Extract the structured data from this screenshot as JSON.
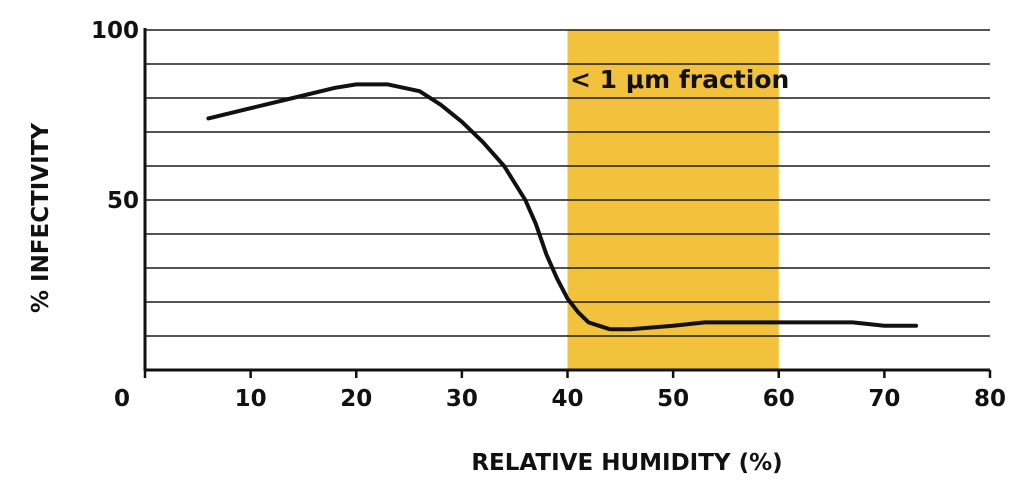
{
  "chart_data": {
    "type": "line",
    "title": "",
    "xlabel": "RELATIVE HUMIDITY (%)",
    "ylabel": "% INFECTIVITY",
    "xlim": [
      0,
      80
    ],
    "ylim": [
      0,
      100
    ],
    "x_ticks": [
      "0",
      "10",
      "20",
      "30",
      "40",
      "50",
      "60",
      "70",
      "80"
    ],
    "y_ticks": [
      "50",
      "100"
    ],
    "grid": true,
    "grid_step": 10,
    "highlight_band": {
      "x_start": 40,
      "x_end": 60,
      "color": "#f2c23c",
      "label": "< 1 μm fraction"
    },
    "line_color": "#111111",
    "series": [
      {
        "values": [
          [
            6,
            74
          ],
          [
            10,
            77
          ],
          [
            14,
            80
          ],
          [
            18,
            83
          ],
          [
            20,
            84
          ],
          [
            23,
            84
          ],
          [
            26,
            82
          ],
          [
            28,
            78
          ],
          [
            30,
            73
          ],
          [
            32,
            67
          ],
          [
            34,
            60
          ],
          [
            36,
            50
          ],
          [
            37,
            43
          ],
          [
            38,
            34
          ],
          [
            39,
            27
          ],
          [
            40,
            21
          ],
          [
            41,
            17
          ],
          [
            42,
            14
          ],
          [
            43,
            13
          ],
          [
            44,
            12
          ],
          [
            46,
            12
          ],
          [
            50,
            13
          ],
          [
            53,
            14
          ],
          [
            58,
            14
          ],
          [
            62,
            14
          ],
          [
            67,
            14
          ],
          [
            70,
            13
          ],
          [
            73,
            13
          ]
        ]
      }
    ]
  }
}
